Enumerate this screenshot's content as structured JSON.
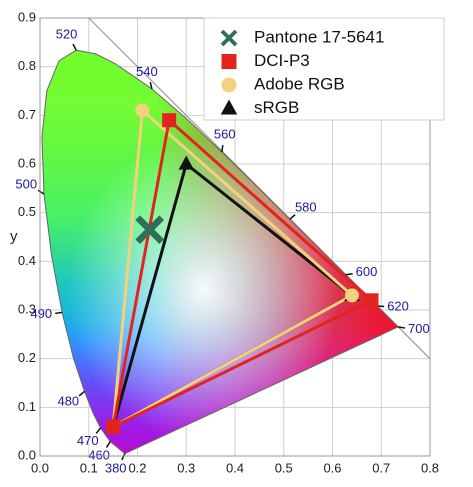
{
  "chart_data": {
    "type": "scatter",
    "ylabel": "y",
    "xlim": [
      0,
      0.8
    ],
    "ylim": [
      0,
      0.9
    ],
    "xticks": [
      {
        "value": 0,
        "label": "0.0"
      },
      0.1,
      0.2,
      0.3,
      0.4,
      0.5,
      0.6,
      0.7,
      0.8
    ],
    "yticks": [
      {
        "value": 0,
        "label": "0.0"
      },
      0.1,
      0.2,
      0.3,
      0.4,
      0.5,
      0.6,
      0.7,
      0.8,
      0.9
    ],
    "grid": true,
    "legend": "upper right",
    "spectral_locus": {
      "x": [
        0.1741,
        0.144,
        0.1241,
        0.1096,
        0.0913,
        0.0687,
        0.0454,
        0.0235,
        0.0082,
        0.0039,
        0.0139,
        0.0389,
        0.0743,
        0.1142,
        0.1547,
        0.2296,
        0.3016,
        0.3731,
        0.4441,
        0.5125,
        0.5752,
        0.627,
        0.6915,
        0.7347
      ],
      "y": [
        0.005,
        0.0297,
        0.0578,
        0.0868,
        0.1327,
        0.2007,
        0.295,
        0.4127,
        0.5384,
        0.6548,
        0.7502,
        0.812,
        0.8338,
        0.8262,
        0.8059,
        0.7543,
        0.6923,
        0.6245,
        0.5547,
        0.4866,
        0.4242,
        0.3725,
        0.3083,
        0.2653
      ]
    },
    "wavelength_labels": [
      {
        "label": "380",
        "x": 0.1741,
        "y": 0.005
      },
      {
        "label": "460",
        "x": 0.144,
        "y": 0.0297
      },
      {
        "label": "470",
        "x": 0.1241,
        "y": 0.0578
      },
      {
        "label": "480",
        "x": 0.0913,
        "y": 0.1327
      },
      {
        "label": "490",
        "x": 0.0454,
        "y": 0.295
      },
      {
        "label": "500",
        "x": 0.0082,
        "y": 0.5384
      },
      {
        "label": "520",
        "x": 0.0743,
        "y": 0.8338
      },
      {
        "label": "540",
        "x": 0.2296,
        "y": 0.7543
      },
      {
        "label": "560",
        "x": 0.3731,
        "y": 0.6245
      },
      {
        "label": "580",
        "x": 0.5125,
        "y": 0.4866
      },
      {
        "label": "600",
        "x": 0.627,
        "y": 0.3725
      },
      {
        "label": "620",
        "x": 0.6915,
        "y": 0.3083
      },
      {
        "label": "700",
        "x": 0.7347,
        "y": 0.2653
      }
    ],
    "series": [
      {
        "name": "Pantone 17-5641",
        "color": "#2f6e57",
        "marker": "x",
        "x": [
          0.225
        ],
        "y": [
          0.465
        ]
      },
      {
        "name": "DCI-P3",
        "color": "#e3231d",
        "marker": "square",
        "closed": true,
        "x": [
          0.68,
          0.265,
          0.15
        ],
        "y": [
          0.32,
          0.69,
          0.06
        ]
      },
      {
        "name": "Adobe RGB",
        "color": "#f3d27c",
        "marker": "circle",
        "closed": true,
        "x": [
          0.64,
          0.21,
          0.15
        ],
        "y": [
          0.33,
          0.71,
          0.06
        ]
      },
      {
        "name": "sRGB",
        "color": "#111111",
        "marker": "triangle",
        "closed": true,
        "x": [
          0.64,
          0.3,
          0.15
        ],
        "y": [
          0.33,
          0.6,
          0.06
        ]
      }
    ]
  }
}
